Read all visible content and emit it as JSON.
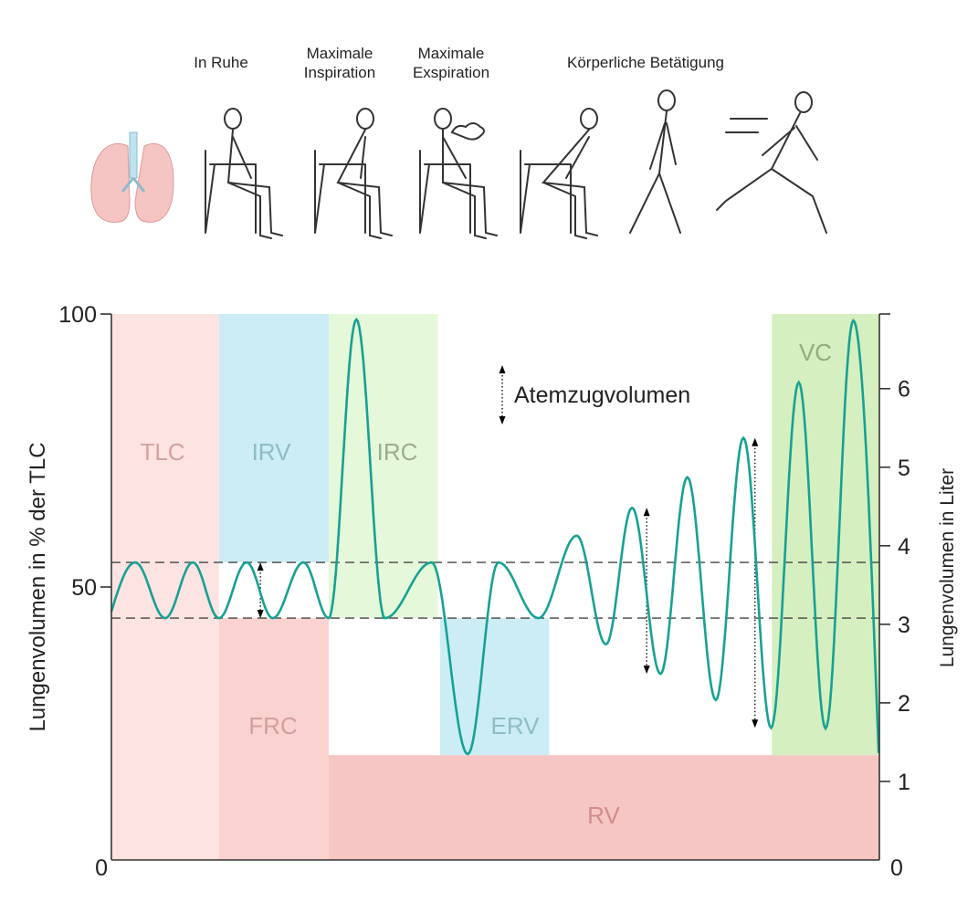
{
  "header": {
    "scenes": [
      {
        "label": "In Ruhe",
        "icon": "resting-person-icon"
      },
      {
        "label": "Maximale Inspiration",
        "icon": "inhaling-person-icon"
      },
      {
        "label": "Maximale Exspiration",
        "icon": "exhaling-person-icon"
      },
      {
        "label": "Körperliche Betätigung",
        "icon": "exercising-person-icon"
      }
    ],
    "lungs_icon": "lungs-icon"
  },
  "chart_data": {
    "type": "line",
    "ylabel": "Lungenvolumen in % der TLC",
    "y2label": "Lungenvolumen in Liter",
    "ylim": [
      0,
      100
    ],
    "yticks": [
      "0",
      "50",
      "100"
    ],
    "y2lim": [
      0,
      6.95
    ],
    "y2ticks": [
      "0",
      "1",
      "2",
      "3",
      "4",
      "5",
      "6"
    ],
    "xlim": [
      0,
      100
    ],
    "grid": false,
    "legend": {
      "label": "Atemzugvolumen",
      "placement": "top-center",
      "symbol": "dotted-double-arrow"
    },
    "reference_lines": [
      54.5,
      44.3
    ],
    "series": [
      {
        "color": "#17a193",
        "extrema": [
          [
            0,
            45.5
          ],
          [
            3.1,
            54.5
          ],
          [
            7.0,
            44.3
          ],
          [
            10.6,
            54.5
          ],
          [
            14.0,
            44.3
          ],
          [
            17.6,
            54.5
          ],
          [
            21.0,
            44.3
          ],
          [
            25.0,
            54.5
          ],
          [
            28.3,
            44.3
          ],
          [
            31.9,
            99.0
          ],
          [
            35.6,
            44.3
          ],
          [
            41.7,
            54.5
          ],
          [
            46.4,
            19.4
          ],
          [
            50.4,
            54.5
          ],
          [
            55.6,
            44.3
          ],
          [
            60.6,
            59.4
          ],
          [
            64.4,
            39.5
          ],
          [
            67.8,
            64.5
          ],
          [
            71.5,
            34.1
          ],
          [
            75.0,
            70.1
          ],
          [
            78.7,
            29.3
          ],
          [
            82.3,
            77.3
          ],
          [
            85.9,
            24.2
          ],
          [
            89.5,
            87.5
          ],
          [
            93.0,
            24.1
          ],
          [
            96.6,
            98.8
          ],
          [
            99.9,
            19.6
          ]
        ]
      }
    ],
    "regions": [
      {
        "label": "TLC",
        "x": [
          0,
          14
        ],
        "y": [
          0,
          100
        ],
        "fill": "#fde3e1",
        "text": "#d3a3a0"
      },
      {
        "label": "IRV",
        "x": [
          14,
          28.3
        ],
        "y": [
          54.5,
          100
        ],
        "fill": "#ccedf6",
        "text": "#8fbcc6"
      },
      {
        "label": "FRC",
        "x": [
          14,
          28.3
        ],
        "y": [
          0,
          44.3
        ],
        "fill": "#fad3d1",
        "text": "#d29e9d"
      },
      {
        "label": "IRC",
        "x": [
          28.3,
          42.5
        ],
        "y": [
          44.3,
          100
        ],
        "fill": "#e6f8da",
        "text": "#9bae8a"
      },
      {
        "label": "ERV",
        "x": [
          42.8,
          57
        ],
        "y": [
          19.2,
          44.3
        ],
        "fill": "#ccedf6",
        "text": "#8fbcc6"
      },
      {
        "label": "RV",
        "x": [
          28.3,
          100
        ],
        "y": [
          0,
          19.2
        ],
        "fill": "#f6c6c4",
        "text": "#cf8e8d"
      },
      {
        "label": "VC",
        "x": [
          86,
          100
        ],
        "y": [
          19.2,
          100
        ],
        "fill": "#d6efc1",
        "text": "#93ab7d"
      }
    ],
    "tidal_arrows": [
      {
        "x": 19.4,
        "y": [
          44.3,
          54.5
        ]
      },
      {
        "x": 69.7,
        "y": [
          34.1,
          64.5
        ]
      },
      {
        "x": 83.8,
        "y": [
          24.2,
          77.3
        ]
      }
    ]
  }
}
